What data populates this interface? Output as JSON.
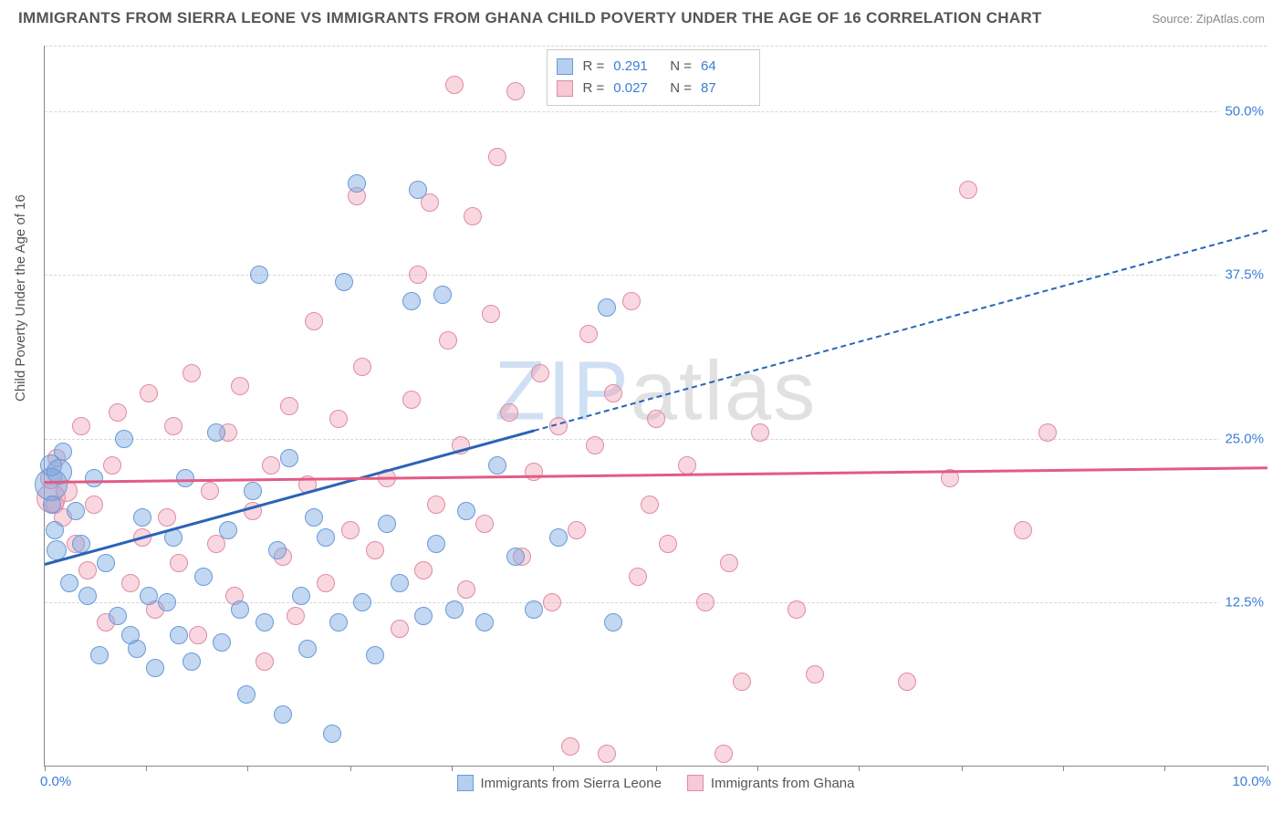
{
  "title": "IMMIGRANTS FROM SIERRA LEONE VS IMMIGRANTS FROM GHANA CHILD POVERTY UNDER THE AGE OF 16 CORRELATION CHART",
  "source_label": "Source: ZipAtlas.com",
  "y_axis_label": "Child Poverty Under the Age of 16",
  "watermark": {
    "zip": "ZIP",
    "atlas": "atlas"
  },
  "chart": {
    "type": "scatter",
    "xlim": [
      0,
      10
    ],
    "ylim": [
      0,
      55
    ],
    "yticks": [
      12.5,
      25.0,
      37.5,
      50.0
    ],
    "ytick_labels": [
      "12.5%",
      "25.0%",
      "37.5%",
      "50.0%"
    ],
    "xtick_positions": [
      0,
      0.83,
      1.66,
      2.5,
      3.33,
      4.16,
      5.0,
      5.83,
      6.66,
      7.5,
      8.33,
      9.16,
      10.0
    ],
    "x_left_label": "0.0%",
    "x_right_label": "10.0%",
    "grid_color": "#d7d7d7",
    "background_color": "#ffffff",
    "axis_color": "#888888",
    "marker_radius_base": 10,
    "series": {
      "sierra_leone": {
        "label": "Immigrants from Sierra Leone",
        "color": "#6a9ad6",
        "fill": "rgba(120,167,224,0.45)",
        "trend_color": "#2a63b8",
        "R": "0.291",
        "N": "64",
        "trend": {
          "x0": 0,
          "y0": 15.5,
          "slope": 2.55
        },
        "points": [
          {
            "x": 0.05,
            "y": 21.5,
            "r": 18
          },
          {
            "x": 0.05,
            "y": 23.0,
            "r": 12
          },
          {
            "x": 0.06,
            "y": 20.0,
            "r": 10
          },
          {
            "x": 0.12,
            "y": 22.5,
            "r": 14
          },
          {
            "x": 0.08,
            "y": 18.0,
            "r": 10
          },
          {
            "x": 0.1,
            "y": 16.5,
            "r": 11
          },
          {
            "x": 0.15,
            "y": 24.0,
            "r": 10
          },
          {
            "x": 0.2,
            "y": 14.0,
            "r": 10
          },
          {
            "x": 0.25,
            "y": 19.5,
            "r": 10
          },
          {
            "x": 0.3,
            "y": 17.0,
            "r": 10
          },
          {
            "x": 0.35,
            "y": 13.0,
            "r": 10
          },
          {
            "x": 0.4,
            "y": 22.0,
            "r": 10
          },
          {
            "x": 0.45,
            "y": 8.5,
            "r": 10
          },
          {
            "x": 0.5,
            "y": 15.5,
            "r": 10
          },
          {
            "x": 0.6,
            "y": 11.5,
            "r": 10
          },
          {
            "x": 0.65,
            "y": 25.0,
            "r": 10
          },
          {
            "x": 0.7,
            "y": 10.0,
            "r": 10
          },
          {
            "x": 0.75,
            "y": 9.0,
            "r": 10
          },
          {
            "x": 0.8,
            "y": 19.0,
            "r": 10
          },
          {
            "x": 0.85,
            "y": 13.0,
            "r": 10
          },
          {
            "x": 0.9,
            "y": 7.5,
            "r": 10
          },
          {
            "x": 1.0,
            "y": 12.5,
            "r": 10
          },
          {
            "x": 1.05,
            "y": 17.5,
            "r": 10
          },
          {
            "x": 1.1,
            "y": 10.0,
            "r": 10
          },
          {
            "x": 1.15,
            "y": 22.0,
            "r": 10
          },
          {
            "x": 1.2,
            "y": 8.0,
            "r": 10
          },
          {
            "x": 1.3,
            "y": 14.5,
            "r": 10
          },
          {
            "x": 1.4,
            "y": 25.5,
            "r": 10
          },
          {
            "x": 1.45,
            "y": 9.5,
            "r": 10
          },
          {
            "x": 1.5,
            "y": 18.0,
            "r": 10
          },
          {
            "x": 1.6,
            "y": 12.0,
            "r": 10
          },
          {
            "x": 1.65,
            "y": 5.5,
            "r": 10
          },
          {
            "x": 1.7,
            "y": 21.0,
            "r": 10
          },
          {
            "x": 1.75,
            "y": 37.5,
            "r": 10
          },
          {
            "x": 1.8,
            "y": 11.0,
            "r": 10
          },
          {
            "x": 1.9,
            "y": 16.5,
            "r": 10
          },
          {
            "x": 1.95,
            "y": 4.0,
            "r": 10
          },
          {
            "x": 2.0,
            "y": 23.5,
            "r": 10
          },
          {
            "x": 2.1,
            "y": 13.0,
            "r": 10
          },
          {
            "x": 2.15,
            "y": 9.0,
            "r": 10
          },
          {
            "x": 2.2,
            "y": 19.0,
            "r": 10
          },
          {
            "x": 2.3,
            "y": 17.5,
            "r": 10
          },
          {
            "x": 2.35,
            "y": 2.5,
            "r": 10
          },
          {
            "x": 2.4,
            "y": 11.0,
            "r": 10
          },
          {
            "x": 2.45,
            "y": 37.0,
            "r": 10
          },
          {
            "x": 2.55,
            "y": 44.5,
            "r": 10
          },
          {
            "x": 2.6,
            "y": 12.5,
            "r": 10
          },
          {
            "x": 2.7,
            "y": 8.5,
            "r": 10
          },
          {
            "x": 2.8,
            "y": 18.5,
            "r": 10
          },
          {
            "x": 2.9,
            "y": 14.0,
            "r": 10
          },
          {
            "x": 3.0,
            "y": 35.5,
            "r": 10
          },
          {
            "x": 3.05,
            "y": 44.0,
            "r": 10
          },
          {
            "x": 3.1,
            "y": 11.5,
            "r": 10
          },
          {
            "x": 3.2,
            "y": 17.0,
            "r": 10
          },
          {
            "x": 3.25,
            "y": 36.0,
            "r": 10
          },
          {
            "x": 3.35,
            "y": 12.0,
            "r": 10
          },
          {
            "x": 3.45,
            "y": 19.5,
            "r": 10
          },
          {
            "x": 3.6,
            "y": 11.0,
            "r": 10
          },
          {
            "x": 3.7,
            "y": 23.0,
            "r": 10
          },
          {
            "x": 3.85,
            "y": 16.0,
            "r": 10
          },
          {
            "x": 4.0,
            "y": 12.0,
            "r": 10
          },
          {
            "x": 4.2,
            "y": 17.5,
            "r": 10
          },
          {
            "x": 4.6,
            "y": 35.0,
            "r": 10
          },
          {
            "x": 4.65,
            "y": 11.0,
            "r": 10
          }
        ]
      },
      "ghana": {
        "label": "Immigrants from Ghana",
        "color": "#e08ba4",
        "fill": "rgba(237,156,178,0.40)",
        "trend_color": "#e35a86",
        "R": "0.027",
        "N": "87",
        "trend": {
          "x0": 0,
          "y0": 21.8,
          "slope": 0.11
        },
        "points": [
          {
            "x": 0.05,
            "y": 20.5,
            "r": 16
          },
          {
            "x": 0.05,
            "y": 22.0,
            "r": 12
          },
          {
            "x": 0.08,
            "y": 20.0,
            "r": 10
          },
          {
            "x": 0.1,
            "y": 23.5,
            "r": 10
          },
          {
            "x": 0.15,
            "y": 19.0,
            "r": 10
          },
          {
            "x": 0.18,
            "y": 21.0,
            "r": 12
          },
          {
            "x": 0.25,
            "y": 17.0,
            "r": 10
          },
          {
            "x": 0.3,
            "y": 26.0,
            "r": 10
          },
          {
            "x": 0.35,
            "y": 15.0,
            "r": 10
          },
          {
            "x": 0.4,
            "y": 20.0,
            "r": 10
          },
          {
            "x": 0.5,
            "y": 11.0,
            "r": 10
          },
          {
            "x": 0.55,
            "y": 23.0,
            "r": 10
          },
          {
            "x": 0.6,
            "y": 27.0,
            "r": 10
          },
          {
            "x": 0.7,
            "y": 14.0,
            "r": 10
          },
          {
            "x": 0.8,
            "y": 17.5,
            "r": 10
          },
          {
            "x": 0.85,
            "y": 28.5,
            "r": 10
          },
          {
            "x": 0.9,
            "y": 12.0,
            "r": 10
          },
          {
            "x": 1.0,
            "y": 19.0,
            "r": 10
          },
          {
            "x": 1.05,
            "y": 26.0,
            "r": 10
          },
          {
            "x": 1.1,
            "y": 15.5,
            "r": 10
          },
          {
            "x": 1.2,
            "y": 30.0,
            "r": 10
          },
          {
            "x": 1.25,
            "y": 10.0,
            "r": 10
          },
          {
            "x": 1.35,
            "y": 21.0,
            "r": 10
          },
          {
            "x": 1.4,
            "y": 17.0,
            "r": 10
          },
          {
            "x": 1.5,
            "y": 25.5,
            "r": 10
          },
          {
            "x": 1.55,
            "y": 13.0,
            "r": 10
          },
          {
            "x": 1.6,
            "y": 29.0,
            "r": 10
          },
          {
            "x": 1.7,
            "y": 19.5,
            "r": 10
          },
          {
            "x": 1.8,
            "y": 8.0,
            "r": 10
          },
          {
            "x": 1.85,
            "y": 23.0,
            "r": 10
          },
          {
            "x": 1.95,
            "y": 16.0,
            "r": 10
          },
          {
            "x": 2.0,
            "y": 27.5,
            "r": 10
          },
          {
            "x": 2.05,
            "y": 11.5,
            "r": 10
          },
          {
            "x": 2.15,
            "y": 21.5,
            "r": 10
          },
          {
            "x": 2.2,
            "y": 34.0,
            "r": 10
          },
          {
            "x": 2.3,
            "y": 14.0,
            "r": 10
          },
          {
            "x": 2.4,
            "y": 26.5,
            "r": 10
          },
          {
            "x": 2.5,
            "y": 18.0,
            "r": 10
          },
          {
            "x": 2.55,
            "y": 43.5,
            "r": 10
          },
          {
            "x": 2.6,
            "y": 30.5,
            "r": 10
          },
          {
            "x": 2.7,
            "y": 16.5,
            "r": 10
          },
          {
            "x": 2.8,
            "y": 22.0,
            "r": 10
          },
          {
            "x": 2.9,
            "y": 10.5,
            "r": 10
          },
          {
            "x": 3.0,
            "y": 28.0,
            "r": 10
          },
          {
            "x": 3.05,
            "y": 37.5,
            "r": 10
          },
          {
            "x": 3.1,
            "y": 15.0,
            "r": 10
          },
          {
            "x": 3.15,
            "y": 43.0,
            "r": 10
          },
          {
            "x": 3.2,
            "y": 20.0,
            "r": 10
          },
          {
            "x": 3.3,
            "y": 32.5,
            "r": 10
          },
          {
            "x": 3.35,
            "y": 52.0,
            "r": 10
          },
          {
            "x": 3.4,
            "y": 24.5,
            "r": 10
          },
          {
            "x": 3.45,
            "y": 13.5,
            "r": 10
          },
          {
            "x": 3.5,
            "y": 42.0,
            "r": 10
          },
          {
            "x": 3.6,
            "y": 18.5,
            "r": 10
          },
          {
            "x": 3.65,
            "y": 34.5,
            "r": 10
          },
          {
            "x": 3.7,
            "y": 46.5,
            "r": 10
          },
          {
            "x": 3.8,
            "y": 27.0,
            "r": 10
          },
          {
            "x": 3.85,
            "y": 51.5,
            "r": 10
          },
          {
            "x": 3.9,
            "y": 16.0,
            "r": 10
          },
          {
            "x": 4.0,
            "y": 22.5,
            "r": 10
          },
          {
            "x": 4.05,
            "y": 30.0,
            "r": 10
          },
          {
            "x": 4.15,
            "y": 12.5,
            "r": 10
          },
          {
            "x": 4.2,
            "y": 26.0,
            "r": 10
          },
          {
            "x": 4.3,
            "y": 1.5,
            "r": 10
          },
          {
            "x": 4.35,
            "y": 18.0,
            "r": 10
          },
          {
            "x": 4.45,
            "y": 33.0,
            "r": 10
          },
          {
            "x": 4.5,
            "y": 24.5,
            "r": 10
          },
          {
            "x": 4.6,
            "y": 1.0,
            "r": 10
          },
          {
            "x": 4.65,
            "y": 28.5,
            "r": 10
          },
          {
            "x": 4.8,
            "y": 35.5,
            "r": 10
          },
          {
            "x": 4.85,
            "y": 14.5,
            "r": 10
          },
          {
            "x": 4.95,
            "y": 20.0,
            "r": 10
          },
          {
            "x": 5.0,
            "y": 26.5,
            "r": 10
          },
          {
            "x": 5.1,
            "y": 17.0,
            "r": 10
          },
          {
            "x": 5.25,
            "y": 23.0,
            "r": 10
          },
          {
            "x": 5.4,
            "y": 12.5,
            "r": 10
          },
          {
            "x": 5.55,
            "y": 1.0,
            "r": 10
          },
          {
            "x": 5.6,
            "y": 15.5,
            "r": 10
          },
          {
            "x": 5.7,
            "y": 6.5,
            "r": 10
          },
          {
            "x": 5.85,
            "y": 25.5,
            "r": 10
          },
          {
            "x": 6.15,
            "y": 12.0,
            "r": 10
          },
          {
            "x": 6.3,
            "y": 7.0,
            "r": 10
          },
          {
            "x": 7.05,
            "y": 6.5,
            "r": 10
          },
          {
            "x": 7.4,
            "y": 22.0,
            "r": 10
          },
          {
            "x": 7.55,
            "y": 44.0,
            "r": 10
          },
          {
            "x": 8.0,
            "y": 18.0,
            "r": 10
          },
          {
            "x": 8.2,
            "y": 25.5,
            "r": 10
          }
        ]
      }
    }
  },
  "stats_box": {
    "rows": [
      {
        "swatch": "blue",
        "r_label": "R  =",
        "r_val": "0.291",
        "n_label": "N  =",
        "n_val": "64"
      },
      {
        "swatch": "pink",
        "r_label": "R  =",
        "r_val": "0.027",
        "n_label": "N  =",
        "n_val": "87"
      }
    ]
  },
  "bottom_legend": [
    {
      "swatch": "blue",
      "label": "Immigrants from Sierra Leone"
    },
    {
      "swatch": "pink",
      "label": "Immigrants from Ghana"
    }
  ]
}
